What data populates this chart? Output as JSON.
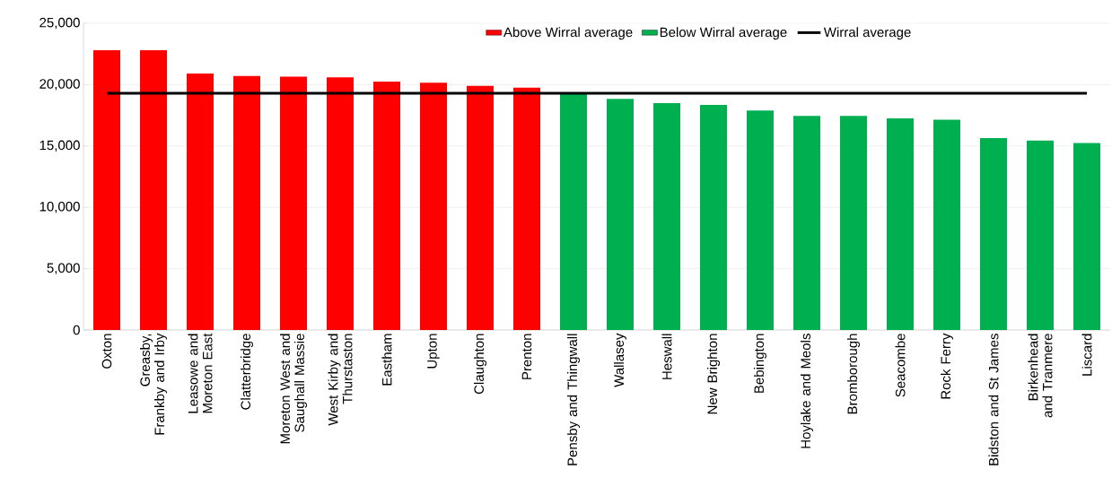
{
  "chart_data": {
    "type": "bar",
    "categories": [
      "Oxton",
      "Greasby, Frankby and Irby",
      "Leasowe and Moreton East",
      "Clatterbridge",
      "Moreton West and Saughall Massie",
      "West Kirby and Thurstaston",
      "Eastham",
      "Upton",
      "Claughton",
      "Prenton",
      "Pensby and Thingwall",
      "Wallasey",
      "Heswall",
      "New Brighton",
      "Bebington",
      "Hoylake and Meols",
      "Bromborough",
      "Seacombe",
      "Rock Ferry",
      "Bidston and St James",
      "Birkenhead and Tranmere",
      "Liscard"
    ],
    "series": [
      {
        "name": "Above Wirral average",
        "color": "#ff0000",
        "values": [
          22800,
          22800,
          20900,
          20700,
          20650,
          20600,
          20250,
          20150,
          19900,
          19750,
          null,
          null,
          null,
          null,
          null,
          null,
          null,
          null,
          null,
          null,
          null,
          null
        ]
      },
      {
        "name": "Below Wirral average",
        "color": "#00b050",
        "values": [
          null,
          null,
          null,
          null,
          null,
          null,
          null,
          null,
          null,
          null,
          19250,
          18850,
          18500,
          18350,
          17900,
          17450,
          17450,
          17250,
          17150,
          15650,
          15450,
          15250
        ]
      }
    ],
    "ref_lines": [
      {
        "axis": "y",
        "value": 19300,
        "label": "Wirral average",
        "color": "#000000"
      }
    ],
    "ylim": [
      0,
      25000
    ],
    "yticks": [
      {
        "value": 0,
        "label": "0"
      },
      {
        "value": 5000,
        "label": "5,000"
      },
      {
        "value": 10000,
        "label": "10,000"
      },
      {
        "value": 15000,
        "label": "15,000"
      },
      {
        "value": 20000,
        "label": "20,000"
      },
      {
        "value": 25000,
        "label": "25,000"
      }
    ],
    "grid": "y",
    "legend": "top"
  }
}
